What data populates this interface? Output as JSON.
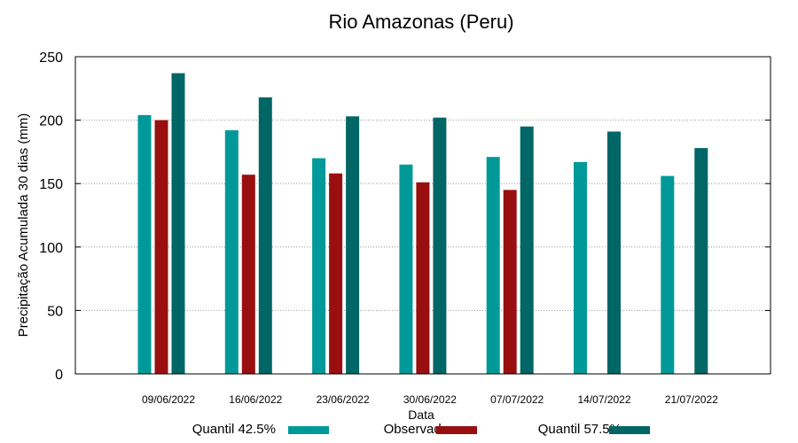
{
  "chart_data": {
    "type": "bar",
    "title": "Rio Amazonas (Peru)",
    "xlabel": "Data",
    "ylabel": "Precipitação Acumulada 30 dias (mm)",
    "ylim": [
      0,
      250
    ],
    "yticks": [
      0,
      50,
      100,
      150,
      200,
      250
    ],
    "grid": true,
    "legend": "bottom",
    "categories": [
      "09/06/2022",
      "16/06/2022",
      "23/06/2022",
      "30/06/2022",
      "07/07/2022",
      "14/07/2022",
      "21/07/2022"
    ],
    "series": [
      {
        "name": "Quantil 42.5%",
        "color": "#009999",
        "values": [
          204,
          192,
          170,
          165,
          171,
          167,
          156
        ]
      },
      {
        "name": "Observado",
        "color": "#990f0f",
        "values": [
          200,
          157,
          158,
          151,
          145,
          null,
          null
        ]
      },
      {
        "name": "Quantil 57.5%",
        "color": "#006666",
        "values": [
          237,
          218,
          203,
          202,
          195,
          191,
          178
        ]
      }
    ]
  }
}
